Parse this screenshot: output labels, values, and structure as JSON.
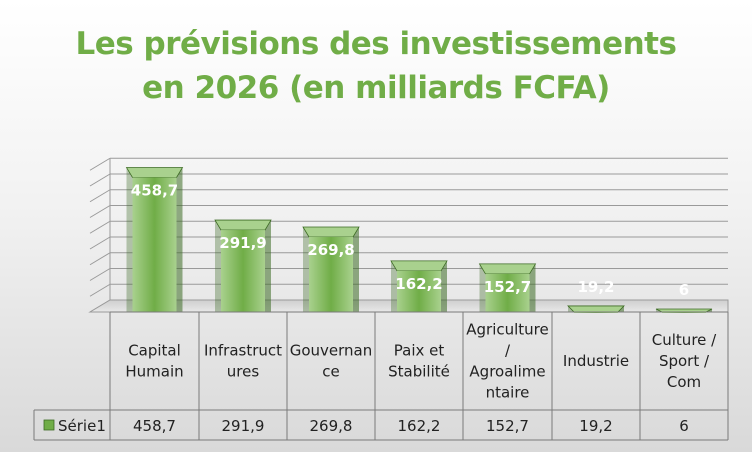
{
  "chart_data": {
    "type": "bar",
    "title_lines": [
      "Les prévisions des investissements",
      "en 2026 (en milliards FCFA)"
    ],
    "categories": [
      [
        "Capital",
        "Humain"
      ],
      [
        "Infrastruct",
        "ures"
      ],
      [
        "Gouvernan",
        "ce"
      ],
      [
        "Paix et",
        "Stabilité"
      ],
      [
        "Agriculture",
        "/",
        "Agroalime",
        "ntaire"
      ],
      [
        "Industrie"
      ],
      [
        "Culture /",
        "Sport /",
        "Com"
      ]
    ],
    "series": [
      {
        "name": "Série1",
        "values": [
          458.7,
          291.9,
          269.8,
          162.2,
          152.7,
          19.2,
          6
        ],
        "labels": [
          "458,7",
          "291,9",
          "269,8",
          "162,2",
          "152,7",
          "19,2",
          "6"
        ]
      }
    ],
    "ylim": [
      0,
      500
    ],
    "grid": true,
    "data_table": true,
    "colors": {
      "title": "#70ad47",
      "bar_front": "#70ad47",
      "bar_light": "#a9d18e",
      "bar_dark": "#3d6b24",
      "grid": "#9a9a9a"
    }
  }
}
